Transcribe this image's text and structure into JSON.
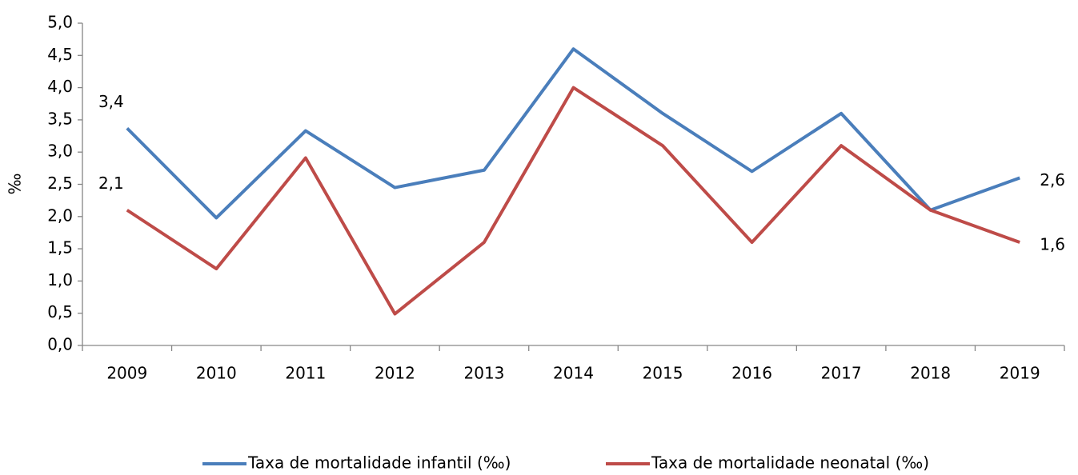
{
  "chart_data": {
    "type": "line",
    "y_label": "‰",
    "categories": [
      "2009",
      "2010",
      "2011",
      "2012",
      "2013",
      "2014",
      "2015",
      "2016",
      "2017",
      "2018",
      "2019"
    ],
    "series": [
      {
        "name": "Taxa de mortalidade infantil (‰)",
        "color": "#4a7ebb",
        "values": [
          3.37,
          1.98,
          3.33,
          2.45,
          2.72,
          4.6,
          3.6,
          2.7,
          3.6,
          2.1,
          2.6
        ],
        "value_labels": [
          "3,4",
          null,
          null,
          null,
          null,
          null,
          null,
          null,
          null,
          null,
          "2,6"
        ]
      },
      {
        "name": "Taxa de mortalidade neonatal (‰)",
        "color": "#be4b48",
        "values": [
          2.1,
          1.19,
          2.91,
          0.49,
          1.6,
          4.0,
          3.1,
          1.6,
          3.1,
          2.1,
          1.6
        ],
        "value_labels": [
          "2,1",
          null,
          null,
          null,
          null,
          null,
          null,
          null,
          null,
          null,
          "1,6"
        ]
      }
    ],
    "ylim": [
      0,
      5
    ],
    "yticks": [
      {
        "value": 0,
        "label": "0,0"
      },
      {
        "value": 0.5,
        "label": "0,5"
      },
      {
        "value": 1,
        "label": "1,0"
      },
      {
        "value": 1.5,
        "label": "1,5"
      },
      {
        "value": 2,
        "label": "2,0"
      },
      {
        "value": 2.5,
        "label": "2,5"
      },
      {
        "value": 3,
        "label": "3,0"
      },
      {
        "value": 3.5,
        "label": "3,5"
      },
      {
        "value": 4,
        "label": "4,0"
      },
      {
        "value": 4.5,
        "label": "4,5"
      },
      {
        "value": 5,
        "label": "5,0"
      }
    ],
    "grid": false,
    "legend": "bottom"
  }
}
